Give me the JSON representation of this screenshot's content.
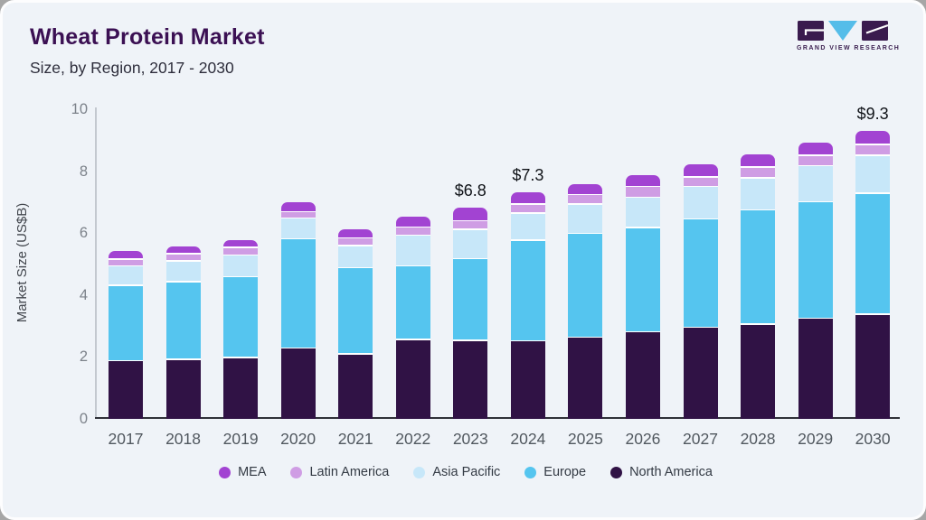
{
  "header": {
    "title": "Wheat Protein Market",
    "subtitle": "Size, by Region, 2017 - 2030",
    "logo_text": "GRAND VIEW RESEARCH"
  },
  "colors": {
    "card_background": "#eff3f8",
    "title": "#3b1053",
    "logo_purple": "#3a1b4e",
    "logo_cyan": "#55bde9",
    "axis_dark": "#2f3138",
    "axis_light": "#c3c8cf"
  },
  "chart_data": {
    "type": "bar",
    "stacked": true,
    "title": "Wheat Protein Market",
    "subtitle": "Size, by Region, 2017 - 2030",
    "xlabel": "",
    "ylabel": "Market Size (US$B)",
    "ylim": [
      0,
      10
    ],
    "yticks": [
      0,
      2,
      4,
      6,
      8,
      10
    ],
    "grid": false,
    "legend_position": "bottom",
    "categories": [
      "2017",
      "2018",
      "2019",
      "2020",
      "2021",
      "2022",
      "2023",
      "2024",
      "2025",
      "2026",
      "2027",
      "2028",
      "2029",
      "2030"
    ],
    "series": [
      {
        "name": "North America",
        "color": "#301245",
        "values": [
          1.92,
          1.97,
          2.03,
          2.33,
          2.15,
          2.61,
          2.59,
          2.56,
          2.68,
          2.86,
          3.0,
          3.11,
          3.29,
          3.43
        ]
      },
      {
        "name": "Europe",
        "color": "#55c5ef",
        "values": [
          2.48,
          2.55,
          2.64,
          3.57,
          2.81,
          2.41,
          2.66,
          3.3,
          3.39,
          3.4,
          3.54,
          3.72,
          3.8,
          3.93
        ]
      },
      {
        "name": "Asia Pacific",
        "color": "#c7e7f9",
        "values": [
          0.6,
          0.63,
          0.68,
          0.64,
          0.7,
          0.97,
          0.93,
          0.84,
          0.93,
          0.95,
          1.02,
          1.0,
          1.14,
          1.2
        ]
      },
      {
        "name": "Latin America",
        "color": "#cf9de4",
        "values": [
          0.17,
          0.2,
          0.2,
          0.17,
          0.2,
          0.22,
          0.23,
          0.25,
          0.26,
          0.31,
          0.26,
          0.31,
          0.29,
          0.31
        ]
      },
      {
        "name": "MEA",
        "color": "#a243d2",
        "values": [
          0.25,
          0.22,
          0.22,
          0.29,
          0.25,
          0.31,
          0.4,
          0.37,
          0.32,
          0.35,
          0.4,
          0.39,
          0.39,
          0.44
        ]
      }
    ],
    "totals": [
      5.4,
      5.6,
      5.8,
      7.0,
      6.1,
      6.5,
      6.8,
      7.3,
      7.6,
      7.9,
      8.2,
      8.5,
      8.9,
      9.3
    ],
    "legend_order": [
      "MEA",
      "Latin America",
      "Asia Pacific",
      "Europe",
      "North America"
    ],
    "annotations": [
      {
        "category": "2023",
        "text": "$6.8"
      },
      {
        "category": "2024",
        "text": "$7.3"
      },
      {
        "category": "2030",
        "text": "$9.3"
      }
    ]
  }
}
